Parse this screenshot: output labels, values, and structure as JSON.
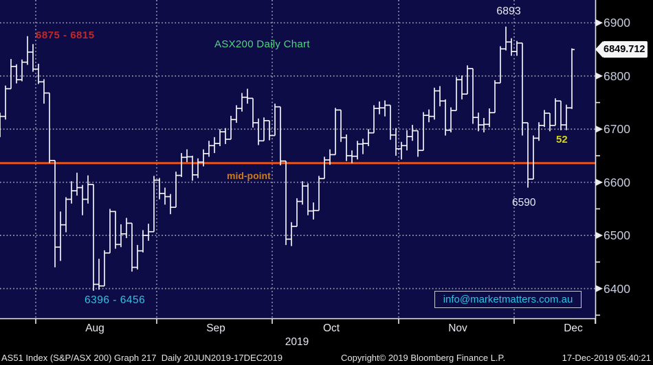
{
  "colors": {
    "background": "#000000",
    "plot_bg": "#0d0c46",
    "bar": "#f2f2f6",
    "grid": "#9ea0b2",
    "axis": "#e9e9f2",
    "orange_line": "#e8531a",
    "midpoint_text": "#cc7d1f",
    "red_label": "#c2282a",
    "green_title": "#55d287",
    "cyan": "#2ec4e4",
    "yellow": "#d6d61e",
    "y_label": "#c9cde2",
    "footer_text": "#e6e6e6",
    "price_tag_bg": "#f5f5f8",
    "price_tag_text": "#000000"
  },
  "annotations": {
    "july_range": "6875 - 6815",
    "november_high": "6893",
    "december_low": "6590",
    "level_52": "52",
    "august_range": "6396 - 6456",
    "contact_email": "info@marketmatters.com.au"
  },
  "footer": {
    "left": "AS51 Index (S&P/ASX 200) Graph 217  Daily 20JUN2019-17DEC2019",
    "copyright": "Copyright© 2019 Bloomberg Finance L.P.",
    "timestamp": "17-Dec-2019 05:40:21"
  },
  "chart_data": {
    "type": "ohlc_bar",
    "title": "ASX200 Daily Chart",
    "last_price": "6849.712",
    "midpoint_line": {
      "value": 6636,
      "label": "mid-point"
    },
    "x_axis": {
      "year": "2019",
      "month_labels": [
        "Aug",
        "Sep",
        "Oct",
        "Nov",
        "Dec"
      ]
    },
    "y_axis": {
      "ylim": [
        6344,
        6943
      ],
      "major_ticks": [
        6900,
        6800,
        6700,
        6600,
        6500,
        6400
      ],
      "minor_ticks": [
        6850,
        6750,
        6650,
        6550,
        6450,
        6350
      ],
      "grid": "dotted",
      "side": "right"
    },
    "bars": [
      [
        "Jul 23",
        6691,
        6731,
        6685,
        6724
      ],
      [
        "Jul 24",
        6724,
        6782,
        6718,
        6776
      ],
      [
        "Jul 25",
        6776,
        6832,
        6776,
        6818
      ],
      [
        "Jul 26",
        6818,
        6822,
        6786,
        6793
      ],
      [
        "Jul 29",
        6793,
        6831,
        6790,
        6826
      ],
      [
        "Jul 30",
        6826,
        6875,
        6821,
        6845
      ],
      [
        "Jul 31",
        6845,
        6860,
        6808,
        6813
      ],
      [
        "Aug 01",
        6813,
        6823,
        6785,
        6789
      ],
      [
        "Aug 02",
        6789,
        6794,
        6748,
        6768
      ],
      [
        "Aug 05",
        6768,
        6768,
        6636,
        6641
      ],
      [
        "Aug 06",
        6641,
        6641,
        6440,
        6478
      ],
      [
        "Aug 07",
        6478,
        6545,
        6452,
        6520
      ],
      [
        "Aug 08",
        6520,
        6572,
        6506,
        6568
      ],
      [
        "Aug 09",
        6568,
        6602,
        6560,
        6584
      ],
      [
        "Aug 12",
        6584,
        6618,
        6575,
        6590
      ],
      [
        "Aug 13",
        6590,
        6595,
        6538,
        6568
      ],
      [
        "Aug 14",
        6568,
        6613,
        6560,
        6596
      ],
      [
        "Aug 15",
        6596,
        6596,
        6396,
        6408
      ],
      [
        "Aug 16",
        6408,
        6456,
        6398,
        6405
      ],
      [
        "Aug 19",
        6405,
        6472,
        6405,
        6467
      ],
      [
        "Aug 20",
        6467,
        6550,
        6467,
        6545
      ],
      [
        "Aug 21",
        6545,
        6546,
        6475,
        6483
      ],
      [
        "Aug 22",
        6483,
        6521,
        6478,
        6503
      ],
      [
        "Aug 23",
        6503,
        6533,
        6495,
        6523
      ],
      [
        "Aug 26",
        6523,
        6523,
        6432,
        6440
      ],
      [
        "Aug 27",
        6440,
        6482,
        6436,
        6471
      ],
      [
        "Aug 28",
        6471,
        6510,
        6468,
        6500
      ],
      [
        "Aug 29",
        6500,
        6522,
        6490,
        6507
      ],
      [
        "Aug 30",
        6507,
        6612,
        6507,
        6604
      ],
      [
        "Sep 02",
        6604,
        6608,
        6568,
        6579
      ],
      [
        "Sep 03",
        6579,
        6590,
        6558,
        6573
      ],
      [
        "Sep 04",
        6573,
        6578,
        6540,
        6553
      ],
      [
        "Sep 05",
        6553,
        6620,
        6553,
        6613
      ],
      [
        "Sep 06",
        6613,
        6655,
        6610,
        6647
      ],
      [
        "Sep 09",
        6647,
        6662,
        6638,
        6648
      ],
      [
        "Sep 10",
        6648,
        6650,
        6603,
        6614
      ],
      [
        "Sep 11",
        6614,
        6645,
        6608,
        6638
      ],
      [
        "Sep 12",
        6638,
        6662,
        6630,
        6654
      ],
      [
        "Sep 13",
        6654,
        6678,
        6648,
        6669
      ],
      [
        "Sep 16",
        6669,
        6685,
        6655,
        6673
      ],
      [
        "Sep 17",
        6673,
        6700,
        6668,
        6695
      ],
      [
        "Sep 18",
        6695,
        6702,
        6672,
        6681
      ],
      [
        "Sep 19",
        6681,
        6725,
        6681,
        6718
      ],
      [
        "Sep 20",
        6718,
        6745,
        6712,
        6739
      ],
      [
        "Sep 23",
        6739,
        6768,
        6733,
        6760
      ],
      [
        "Sep 24",
        6760,
        6776,
        6748,
        6758
      ],
      [
        "Sep 25",
        6758,
        6758,
        6703,
        6712
      ],
      [
        "Sep 26",
        6712,
        6720,
        6670,
        6678
      ],
      [
        "Sep 27",
        6678,
        6722,
        6678,
        6716
      ],
      [
        "Sep 30",
        6716,
        6716,
        6679,
        6688
      ],
      [
        "Oct 01",
        6688,
        6748,
        6688,
        6742
      ],
      [
        "Oct 02",
        6742,
        6742,
        6632,
        6640
      ],
      [
        "Oct 03",
        6640,
        6640,
        6482,
        6493
      ],
      [
        "Oct 04",
        6493,
        6525,
        6480,
        6517
      ],
      [
        "Oct 07",
        6517,
        6570,
        6517,
        6564
      ],
      [
        "Oct 08",
        6564,
        6602,
        6558,
        6593
      ],
      [
        "Oct 09",
        6593,
        6598,
        6538,
        6546
      ],
      [
        "Oct 10",
        6546,
        6562,
        6530,
        6547
      ],
      [
        "Oct 11",
        6547,
        6612,
        6547,
        6607
      ],
      [
        "Oct 14",
        6607,
        6648,
        6607,
        6642
      ],
      [
        "Oct 15",
        6642,
        6662,
        6633,
        6652
      ],
      [
        "Oct 16",
        6652,
        6740,
        6652,
        6736
      ],
      [
        "Oct 17",
        6736,
        6736,
        6676,
        6684
      ],
      [
        "Oct 18",
        6684,
        6690,
        6640,
        6650
      ],
      [
        "Oct 21",
        6650,
        6660,
        6636,
        6649
      ],
      [
        "Oct 22",
        6649,
        6678,
        6643,
        6672
      ],
      [
        "Oct 23",
        6672,
        6682,
        6653,
        6673
      ],
      [
        "Oct 24",
        6673,
        6700,
        6668,
        6693
      ],
      [
        "Oct 25",
        6693,
        6745,
        6693,
        6739
      ],
      [
        "Oct 28",
        6739,
        6752,
        6728,
        6740
      ],
      [
        "Oct 29",
        6740,
        6754,
        6724,
        6745
      ],
      [
        "Oct 30",
        6745,
        6745,
        6680,
        6689
      ],
      [
        "Oct 31",
        6689,
        6702,
        6650,
        6663
      ],
      [
        "Nov 01",
        6663,
        6676,
        6643,
        6669
      ],
      [
        "Nov 04",
        6669,
        6698,
        6660,
        6686
      ],
      [
        "Nov 05",
        6686,
        6708,
        6678,
        6697
      ],
      [
        "Nov 06",
        6697,
        6697,
        6648,
        6660
      ],
      [
        "Nov 07",
        6660,
        6732,
        6660,
        6726
      ],
      [
        "Nov 08",
        6726,
        6737,
        6713,
        6724
      ],
      [
        "Nov 11",
        6724,
        6778,
        6718,
        6772
      ],
      [
        "Nov 12",
        6772,
        6781,
        6743,
        6753
      ],
      [
        "Nov 13",
        6753,
        6756,
        6688,
        6698
      ],
      [
        "Nov 14",
        6698,
        6741,
        6694,
        6735
      ],
      [
        "Nov 15",
        6735,
        6798,
        6735,
        6793
      ],
      [
        "Nov 18",
        6793,
        6801,
        6756,
        6766
      ],
      [
        "Nov 19",
        6766,
        6820,
        6766,
        6814
      ],
      [
        "Nov 20",
        6814,
        6814,
        6710,
        6722
      ],
      [
        "Nov 21",
        6722,
        6731,
        6696,
        6708
      ],
      [
        "Nov 22",
        6708,
        6721,
        6694,
        6709
      ],
      [
        "Nov 25",
        6709,
        6739,
        6704,
        6731
      ],
      [
        "Nov 26",
        6731,
        6792,
        6731,
        6787
      ],
      [
        "Nov 27",
        6787,
        6856,
        6787,
        6851
      ],
      [
        "Nov 28",
        6851,
        6893,
        6848,
        6864
      ],
      [
        "Nov 29",
        6864,
        6871,
        6838,
        6846
      ],
      [
        "Dec 02",
        6846,
        6866,
        6838,
        6862
      ],
      [
        "Dec 03",
        6862,
        6862,
        6688,
        6712
      ],
      [
        "Dec 04",
        6712,
        6712,
        6590,
        6606
      ],
      [
        "Dec 05",
        6606,
        6688,
        6606,
        6683
      ],
      [
        "Dec 06",
        6683,
        6713,
        6678,
        6707
      ],
      [
        "Dec 09",
        6707,
        6736,
        6704,
        6730
      ],
      [
        "Dec 10",
        6730,
        6730,
        6696,
        6707
      ],
      [
        "Dec 11",
        6707,
        6758,
        6707,
        6753
      ],
      [
        "Dec 12",
        6753,
        6753,
        6698,
        6708
      ],
      [
        "Dec 13",
        6708,
        6746,
        6698,
        6740
      ],
      [
        "Dec 16",
        6740,
        6852,
        6738,
        6849.712
      ]
    ]
  }
}
